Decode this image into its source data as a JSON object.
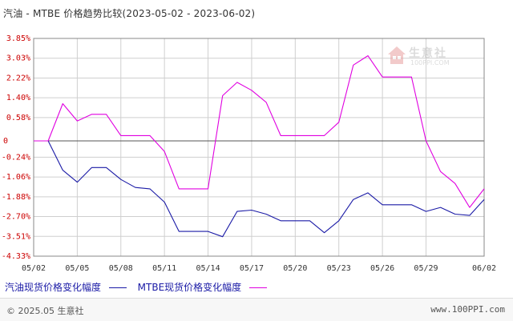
{
  "title": "汽油 - MTBE 价格趋势比较(2023-05-02 - 2023-06-02)",
  "watermark": {
    "name": "生意社",
    "url": "100PPI.COM"
  },
  "footer": {
    "left": "© 2025.05 生意社",
    "right": "www.100PPI.com"
  },
  "colors": {
    "series1": "#1a1aa6",
    "series2": "#e000e0",
    "grid": "#cfcfcf",
    "axis": "#333333",
    "tick_text": "#cc0000",
    "xtick_text": "#333333"
  },
  "chart_data": {
    "type": "line",
    "title": "汽油 - MTBE 价格趋势比较(2023-05-02 - 2023-06-02)",
    "xlabel": "",
    "ylabel": "",
    "x_ticks": [
      "05/02",
      "05/05",
      "05/08",
      "05/11",
      "05/14",
      "05/17",
      "05/20",
      "05/23",
      "05/26",
      "05/29",
      "06/02"
    ],
    "y_ticks": [
      "3.85%",
      "3.03%",
      "2.22%",
      "1.40%",
      "0.58%",
      "0",
      "-0.24%",
      "-1.06%",
      "-1.88%",
      "-2.70%",
      "-3.51%",
      "-4.33%"
    ],
    "ylim": [
      -4.33,
      3.85
    ],
    "grid": true,
    "legend": "bottom-left",
    "x": [
      "05/02",
      "05/03",
      "05/04",
      "05/05",
      "05/06",
      "05/07",
      "05/08",
      "05/09",
      "05/10",
      "05/11",
      "05/12",
      "05/13",
      "05/14",
      "05/15",
      "05/16",
      "05/17",
      "05/18",
      "05/19",
      "05/20",
      "05/21",
      "05/22",
      "05/23",
      "05/24",
      "05/25",
      "05/26",
      "05/27",
      "05/28",
      "05/29",
      "05/30",
      "05/31",
      "06/01",
      "06/02"
    ],
    "series": [
      {
        "name": "汽油现货价格变化幅度",
        "values": [
          0,
          0,
          -1.1,
          -1.55,
          -1.0,
          -1.0,
          -1.45,
          -1.75,
          -1.8,
          -2.3,
          -3.4,
          -3.4,
          -3.4,
          -3.6,
          -2.65,
          -2.6,
          -2.75,
          -3.0,
          -3.0,
          -3.0,
          -3.45,
          -3.0,
          -2.2,
          -1.95,
          -2.4,
          -2.4,
          -2.4,
          -2.65,
          -2.5,
          -2.75,
          -2.8,
          -2.2
        ]
      },
      {
        "name": "MTBE现货价格变化幅度",
        "values": [
          0,
          0,
          1.4,
          0.75,
          1.0,
          1.0,
          0.2,
          0.2,
          0.2,
          -0.4,
          -1.8,
          -1.8,
          -1.8,
          1.7,
          2.2,
          1.9,
          1.45,
          0.2,
          0.2,
          0.2,
          0.2,
          0.7,
          2.85,
          3.2,
          2.4,
          2.4,
          2.4,
          0,
          -1.15,
          -1.6,
          -2.5,
          -1.8
        ]
      }
    ]
  }
}
